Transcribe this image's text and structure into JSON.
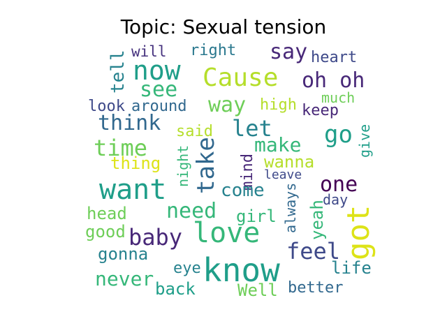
{
  "title": "Topic: Sexual tension",
  "words": [
    {
      "text": "will",
      "color": "#46327e"
    },
    {
      "text": "right",
      "color": "#2a788e"
    },
    {
      "text": "say",
      "color": "#482878"
    },
    {
      "text": "heart",
      "color": "#3e4989"
    },
    {
      "text": "now",
      "color": "#1f9e89"
    },
    {
      "text": "Cause",
      "color": "#b5de2b"
    },
    {
      "text": "oh oh",
      "color": "#482878"
    },
    {
      "text": "tell",
      "color": "#26828e"
    },
    {
      "text": "see",
      "color": "#35b779"
    },
    {
      "text": "much",
      "color": "#6ece58"
    },
    {
      "text": "way",
      "color": "#6ece58"
    },
    {
      "text": "look",
      "color": "#3e4989"
    },
    {
      "text": "around",
      "color": "#31688e"
    },
    {
      "text": "high",
      "color": "#b5de2b"
    },
    {
      "text": "keep",
      "color": "#482878"
    },
    {
      "text": "think",
      "color": "#31688e"
    },
    {
      "text": "let",
      "color": "#26828e"
    },
    {
      "text": "go",
      "color": "#1f9e89"
    },
    {
      "text": "said",
      "color": "#b5de2b"
    },
    {
      "text": "give",
      "color": "#1f9e89"
    },
    {
      "text": "time",
      "color": "#6ece58"
    },
    {
      "text": "take",
      "color": "#31688e"
    },
    {
      "text": "make",
      "color": "#35b779"
    },
    {
      "text": "thing",
      "color": "#dde318"
    },
    {
      "text": "night",
      "color": "#35b779"
    },
    {
      "text": "mind",
      "color": "#482878"
    },
    {
      "text": "wanna",
      "color": "#b5de2b"
    },
    {
      "text": "leave",
      "color": "#3e4989"
    },
    {
      "text": "want",
      "color": "#1f9e89"
    },
    {
      "text": "come",
      "color": "#26828e"
    },
    {
      "text": "one",
      "color": "#440154"
    },
    {
      "text": "day",
      "color": "#3e4989"
    },
    {
      "text": "head",
      "color": "#6ece58"
    },
    {
      "text": "need",
      "color": "#35b779"
    },
    {
      "text": "always",
      "color": "#31688e"
    },
    {
      "text": "girl",
      "color": "#35b779"
    },
    {
      "text": "yeah",
      "color": "#35b779"
    },
    {
      "text": "got",
      "color": "#dde318"
    },
    {
      "text": "good",
      "color": "#6ece58"
    },
    {
      "text": "love",
      "color": "#35b779"
    },
    {
      "text": "baby",
      "color": "#482878"
    },
    {
      "text": "feel",
      "color": "#3e4989"
    },
    {
      "text": "gonna",
      "color": "#26828e"
    },
    {
      "text": "know",
      "color": "#1f9e89"
    },
    {
      "text": "eye",
      "color": "#26828e"
    },
    {
      "text": "life",
      "color": "#26828e"
    },
    {
      "text": "never",
      "color": "#35b779"
    },
    {
      "text": "back",
      "color": "#1f9e89"
    },
    {
      "text": "Well",
      "color": "#6ece58"
    },
    {
      "text": "better",
      "color": "#31688e"
    }
  ]
}
